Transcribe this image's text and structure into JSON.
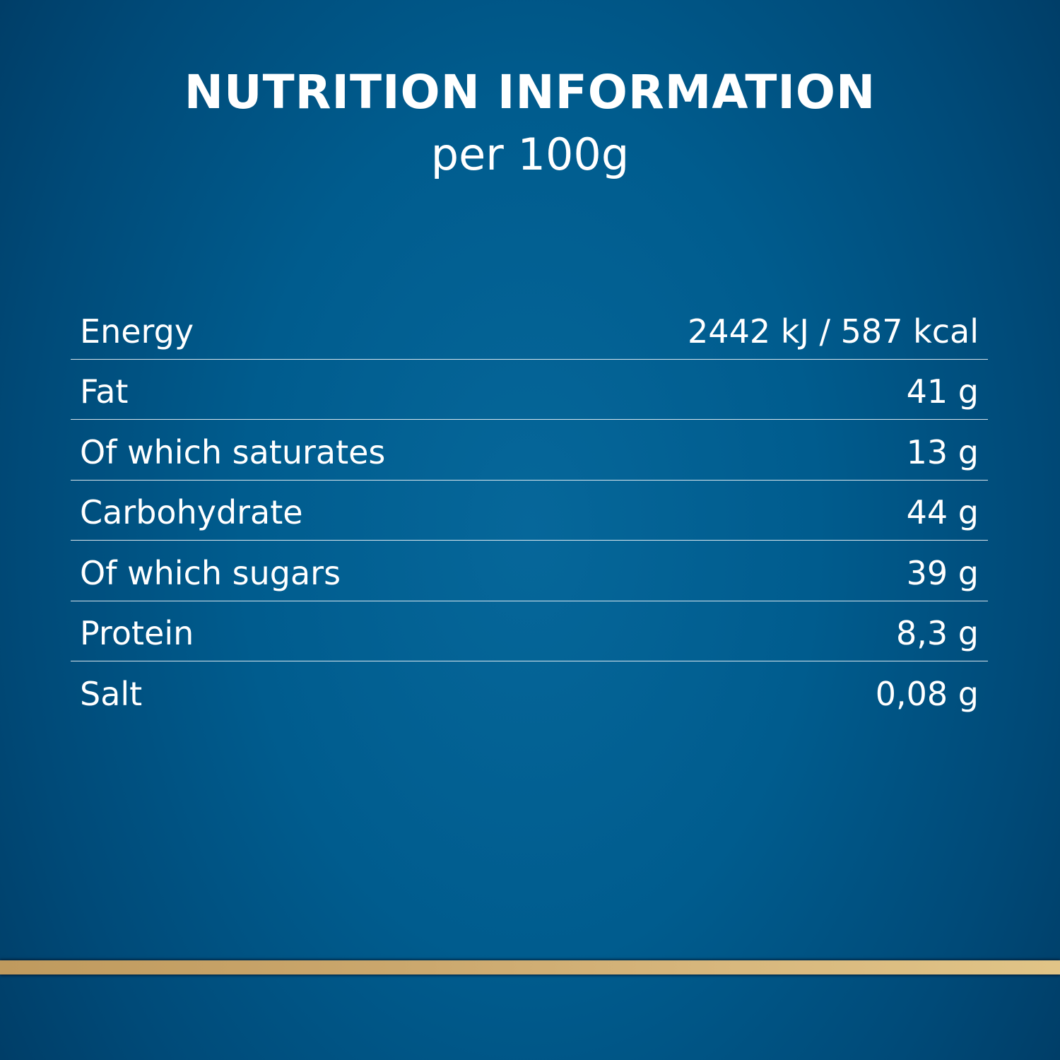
{
  "header": {
    "title": "NUTRITION INFORMATION",
    "subtitle": "per 100g"
  },
  "rows": [
    {
      "label": "Energy",
      "value": "2442 kJ / 587 kcal"
    },
    {
      "label": "Fat",
      "value": "41 g"
    },
    {
      "label": "Of which saturates",
      "value": "13 g"
    },
    {
      "label": "Carbohydrate",
      "value": "44 g"
    },
    {
      "label": "Of which sugars",
      "value": "39 g"
    },
    {
      "label": "Protein",
      "value": "8,3 g"
    },
    {
      "label": "Salt",
      "value": "0,08 g"
    }
  ],
  "colors": {
    "background": "#005c8e",
    "accent_bar": "#d8b87e",
    "text": "#ffffff"
  }
}
